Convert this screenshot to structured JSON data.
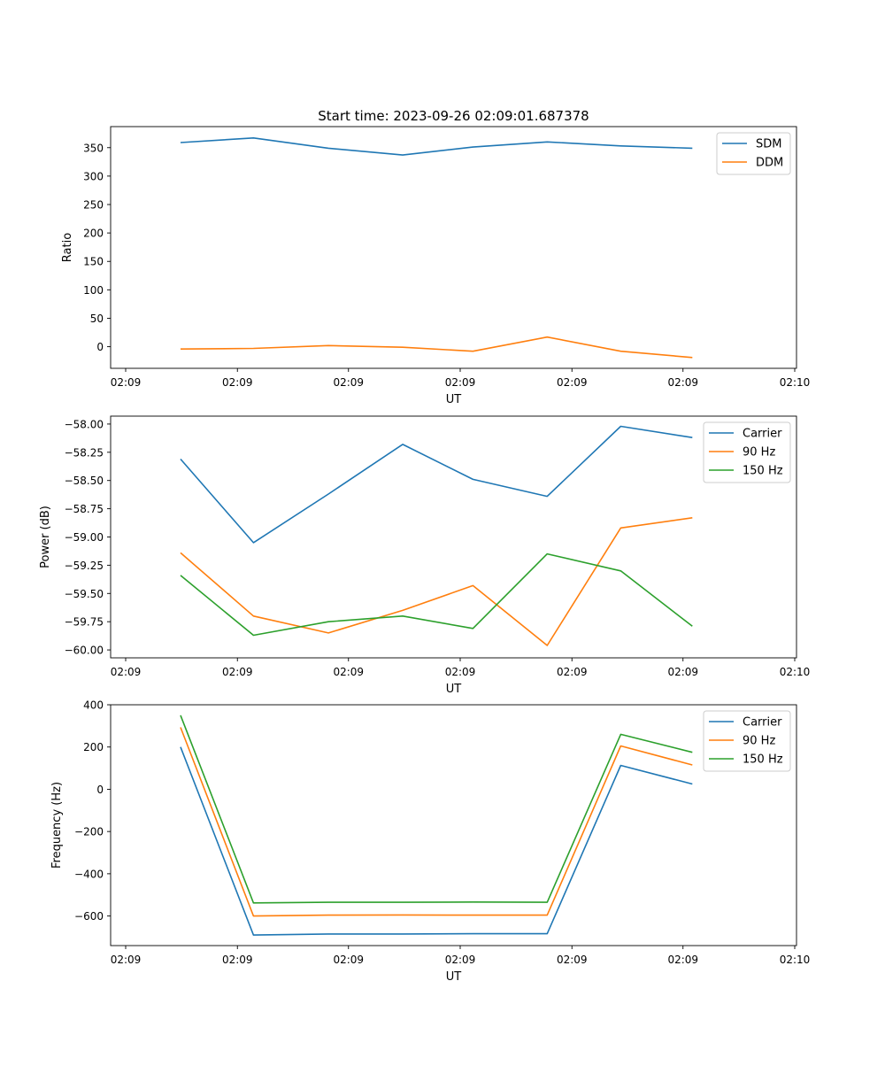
{
  "chart_data": [
    {
      "type": "line",
      "title": "Start time: 2023-09-26 02:09:01.687378",
      "xlabel": "UT",
      "ylabel": "Ratio",
      "xlim": [
        0,
        1
      ],
      "ylim": [
        -38,
        387
      ],
      "x": [
        0.082,
        0.191,
        0.303,
        0.414,
        0.519,
        0.63,
        0.74,
        0.847
      ],
      "x_ticks": [
        0.0,
        0.167,
        0.333,
        0.5,
        0.667,
        0.833,
        1.0
      ],
      "x_tick_labels": [
        "02:09",
        "02:09",
        "02:09",
        "02:09",
        "02:09",
        "02:09",
        "02:10"
      ],
      "y_ticks": [
        0,
        50,
        100,
        150,
        200,
        250,
        300,
        350
      ],
      "y_tick_labels": [
        "0",
        "50",
        "100",
        "150",
        "200",
        "250",
        "300",
        "350"
      ],
      "legend_position": "top-right",
      "series": [
        {
          "name": "SDM",
          "color": "#1f77b4",
          "values": [
            359,
            367,
            349,
            337,
            351,
            360,
            353,
            349
          ]
        },
        {
          "name": "DDM",
          "color": "#ff7f0e",
          "values": [
            -4,
            -3,
            2,
            -1,
            -8,
            17,
            -8,
            -19
          ]
        }
      ]
    },
    {
      "type": "line",
      "title": "",
      "xlabel": "UT",
      "ylabel": "Power (dB)",
      "xlim": [
        0,
        1
      ],
      "ylim": [
        -60.07,
        -57.93
      ],
      "x": [
        0.082,
        0.191,
        0.303,
        0.414,
        0.519,
        0.63,
        0.74,
        0.847
      ],
      "x_ticks": [
        0.0,
        0.167,
        0.333,
        0.5,
        0.667,
        0.833,
        1.0
      ],
      "x_tick_labels": [
        "02:09",
        "02:09",
        "02:09",
        "02:09",
        "02:09",
        "02:09",
        "02:10"
      ],
      "y_ticks": [
        -60.0,
        -59.75,
        -59.5,
        -59.25,
        -59.0,
        -58.75,
        -58.5,
        -58.25,
        -58.0
      ],
      "y_tick_labels": [
        "−60.00",
        "−59.75",
        "−59.50",
        "−59.25",
        "−59.00",
        "−58.75",
        "−58.50",
        "−58.25",
        "−58.00"
      ],
      "legend_position": "top-right",
      "series": [
        {
          "name": "Carrier",
          "color": "#1f77b4",
          "values": [
            -58.31,
            -59.05,
            -58.62,
            -58.18,
            -58.49,
            -58.64,
            -58.02,
            -58.12
          ]
        },
        {
          "name": "90 Hz",
          "color": "#ff7f0e",
          "values": [
            -59.14,
            -59.7,
            -59.85,
            -59.65,
            -59.43,
            -59.96,
            -58.92,
            -58.83
          ]
        },
        {
          "name": "150 Hz",
          "color": "#2ca02c",
          "values": [
            -59.34,
            -59.87,
            -59.75,
            -59.7,
            -59.81,
            -59.15,
            -59.3,
            -59.79
          ]
        }
      ]
    },
    {
      "type": "line",
      "title": "",
      "xlabel": "UT",
      "ylabel": "Frequency (Hz)",
      "xlim": [
        0,
        1
      ],
      "ylim": [
        -740,
        400
      ],
      "x": [
        0.082,
        0.191,
        0.303,
        0.414,
        0.519,
        0.63,
        0.74,
        0.847
      ],
      "x_ticks": [
        0.0,
        0.167,
        0.333,
        0.5,
        0.667,
        0.833,
        1.0
      ],
      "x_tick_labels": [
        "02:09",
        "02:09",
        "02:09",
        "02:09",
        "02:09",
        "02:09",
        "02:10"
      ],
      "y_ticks": [
        -600,
        -400,
        -200,
        0,
        200,
        400
      ],
      "y_tick_labels": [
        "−600",
        "−400",
        "−200",
        "0",
        "200",
        "400"
      ],
      "legend_position": "top-right",
      "series": [
        {
          "name": "Carrier",
          "color": "#1f77b4",
          "values": [
            200,
            -690,
            -685,
            -685,
            -684,
            -684,
            113,
            25
          ]
        },
        {
          "name": "90 Hz",
          "color": "#ff7f0e",
          "values": [
            293,
            -600,
            -596,
            -595,
            -596,
            -596,
            205,
            115
          ]
        },
        {
          "name": "150 Hz",
          "color": "#2ca02c",
          "values": [
            350,
            -538,
            -535,
            -535,
            -534,
            -535,
            260,
            175
          ]
        }
      ]
    }
  ]
}
